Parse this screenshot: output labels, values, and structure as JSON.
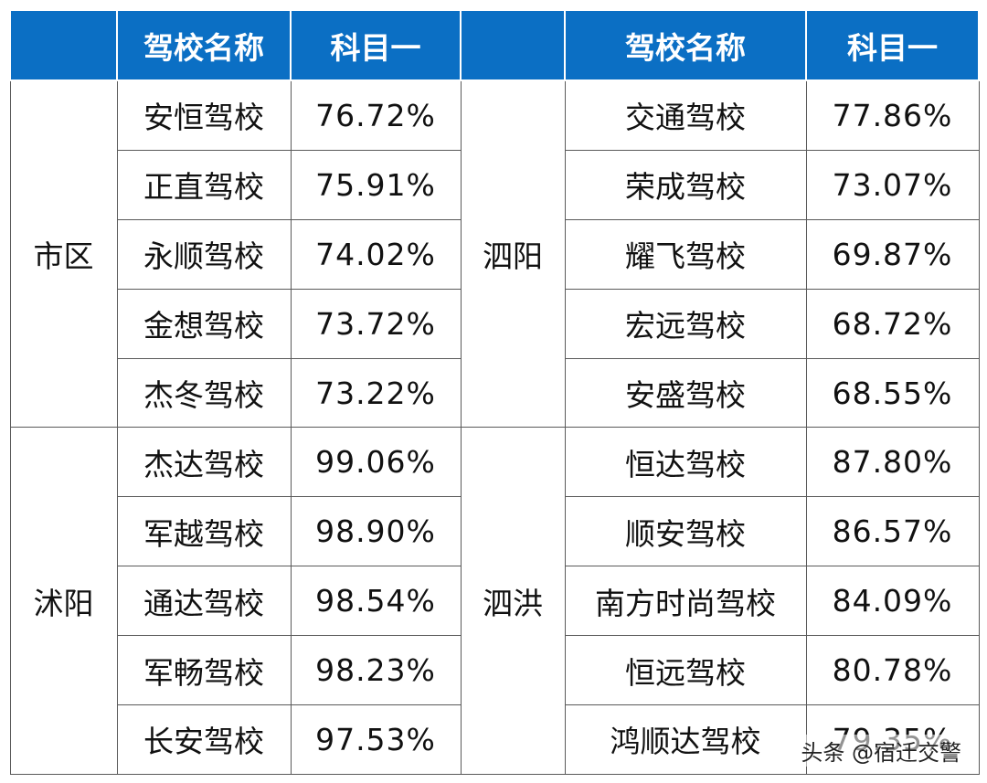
{
  "header": {
    "region_left": "",
    "school_left": "驾校名称",
    "subject_left": "科目一",
    "region_right": "",
    "school_right": "驾校名称",
    "subject_right": "科目一"
  },
  "groups": [
    {
      "left_region": "市区",
      "right_region": "泗阳",
      "rows": [
        {
          "left_school": "安恒驾校",
          "left_rate": "76.72%",
          "right_school": "交通驾校",
          "right_rate": "77.86%"
        },
        {
          "left_school": "正直驾校",
          "left_rate": "75.91%",
          "right_school": "荣成驾校",
          "right_rate": "73.07%"
        },
        {
          "left_school": "永顺驾校",
          "left_rate": "74.02%",
          "right_school": "耀飞驾校",
          "right_rate": "69.87%"
        },
        {
          "left_school": "金想驾校",
          "left_rate": "73.72%",
          "right_school": "宏远驾校",
          "right_rate": "68.72%"
        },
        {
          "left_school": "杰冬驾校",
          "left_rate": "73.22%",
          "right_school": "安盛驾校",
          "right_rate": "68.55%"
        }
      ]
    },
    {
      "left_region": "沭阳",
      "right_region": "泗洪",
      "rows": [
        {
          "left_school": "杰达驾校",
          "left_rate": "99.06%",
          "right_school": "恒达驾校",
          "right_rate": "87.80%"
        },
        {
          "left_school": "军越驾校",
          "left_rate": "98.90%",
          "right_school": "顺安驾校",
          "right_rate": "86.57%"
        },
        {
          "left_school": "通达驾校",
          "left_rate": "98.54%",
          "right_school": "南方时尚驾校",
          "right_rate": "84.09%"
        },
        {
          "left_school": "军畅驾校",
          "left_rate": "98.23%",
          "right_school": "恒远驾校",
          "right_rate": "80.78%"
        },
        {
          "left_school": "长安驾校",
          "left_rate": "97.53%",
          "right_school": "鸿顺达驾校",
          "right_rate": "79.35%"
        }
      ]
    }
  ],
  "watermark": "头条 @宿迁交警",
  "colors": {
    "header_bg": "#0b6fc4",
    "header_text": "#ffffff",
    "border": "#5a5a5a"
  }
}
